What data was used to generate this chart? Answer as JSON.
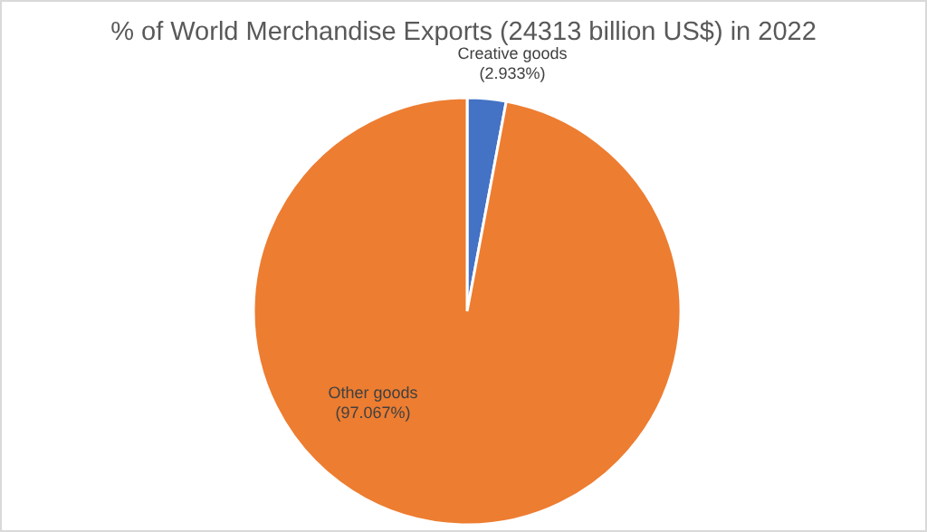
{
  "chart_data": {
    "type": "pie",
    "title": "% of World Merchandise Exports (24313 billion US$) in 2022",
    "categories": [
      "Creative goods",
      "Other goods"
    ],
    "values": [
      2.933,
      97.067
    ],
    "colors": [
      "#4472c4",
      "#ed7d31"
    ],
    "value_labels": [
      "(2.933%)",
      "(97.067%)"
    ],
    "legend": false
  }
}
